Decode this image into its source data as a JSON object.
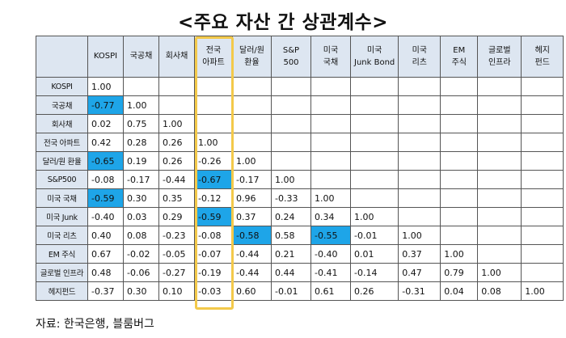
{
  "title": "<주요 자산 간 상관계수>",
  "columns": [
    "KOSPI",
    "국공채",
    "회사채",
    "전국\n아파트",
    "달러/원\n환율",
    "S&P\n500",
    "미국\n국채",
    "미국\nJunk Bond",
    "미국\n리츠",
    "EM\n주식",
    "글로벌\n인프라",
    "헤지\n펀드"
  ],
  "rows": [
    {
      "label": "KOSPI",
      "values": [
        "1.00",
        "",
        "",
        "",
        "",
        "",
        "",
        "",
        "",
        "",
        "",
        ""
      ]
    },
    {
      "label": "국공채",
      "values": [
        "-0.77",
        "1.00",
        "",
        "",
        "",
        "",
        "",
        "",
        "",
        "",
        "",
        ""
      ]
    },
    {
      "label": "회사채",
      "values": [
        "0.02",
        "0.75",
        "1.00",
        "",
        "",
        "",
        "",
        "",
        "",
        "",
        "",
        ""
      ]
    },
    {
      "label": "전국 아파트",
      "values": [
        "0.42",
        "0.28",
        "0.26",
        "1.00",
        "",
        "",
        "",
        "",
        "",
        "",
        "",
        ""
      ]
    },
    {
      "label": "달러/원 환율",
      "values": [
        "-0.65",
        "0.19",
        "0.26",
        "-0.26",
        "1.00",
        "",
        "",
        "",
        "",
        "",
        "",
        ""
      ]
    },
    {
      "label": "S&P500",
      "values": [
        "-0.08",
        "-0.17",
        "-0.44",
        "-0.67",
        "-0.17",
        "1.00",
        "",
        "",
        "",
        "",
        "",
        ""
      ]
    },
    {
      "label": "미국 국채",
      "values": [
        "-0.59",
        "0.30",
        "0.35",
        "-0.12",
        "0.96",
        "-0.33",
        "1.00",
        "",
        "",
        "",
        "",
        ""
      ]
    },
    {
      "label": "미국 Junk",
      "values": [
        "-0.40",
        "0.03",
        "0.29",
        "-0.59",
        "0.37",
        "0.24",
        "0.34",
        "1.00",
        "",
        "",
        "",
        ""
      ]
    },
    {
      "label": "미국 리츠",
      "values": [
        "0.40",
        "0.08",
        "-0.23",
        "-0.08",
        "-0.58",
        "0.58",
        "-0.55",
        "-0.01",
        "1.00",
        "",
        "",
        ""
      ]
    },
    {
      "label": "EM 주식",
      "values": [
        "0.67",
        "-0.02",
        "-0.05",
        "-0.07",
        "-0.44",
        "0.21",
        "-0.40",
        "0.01",
        "0.37",
        "1.00",
        "",
        ""
      ]
    },
    {
      "label": "글로벌 인프라",
      "values": [
        "0.48",
        "-0.06",
        "-0.27",
        "-0.19",
        "-0.44",
        "0.44",
        "-0.41",
        "-0.14",
        "0.47",
        "0.79",
        "1.00",
        ""
      ]
    },
    {
      "label": "헤지펀드",
      "values": [
        "-0.37",
        "0.30",
        "0.10",
        "-0.03",
        "0.60",
        "-0.01",
        "0.61",
        "0.26",
        "-0.31",
        "0.04",
        "0.08",
        "1.00"
      ]
    }
  ],
  "highlighted_cells": [
    [
      1,
      0
    ],
    [
      4,
      0
    ],
    [
      6,
      0
    ],
    [
      5,
      3
    ],
    [
      7,
      3
    ],
    [
      8,
      4
    ],
    [
      8,
      6
    ]
  ],
  "highlighted_column": 3,
  "colors": {
    "header_bg": "#dde6f1",
    "highlight_cell": "#1ea5e8",
    "highlight_box": "#f3c94a",
    "border": "#555555"
  },
  "source": "자료: 한국은행, 블룸버그"
}
